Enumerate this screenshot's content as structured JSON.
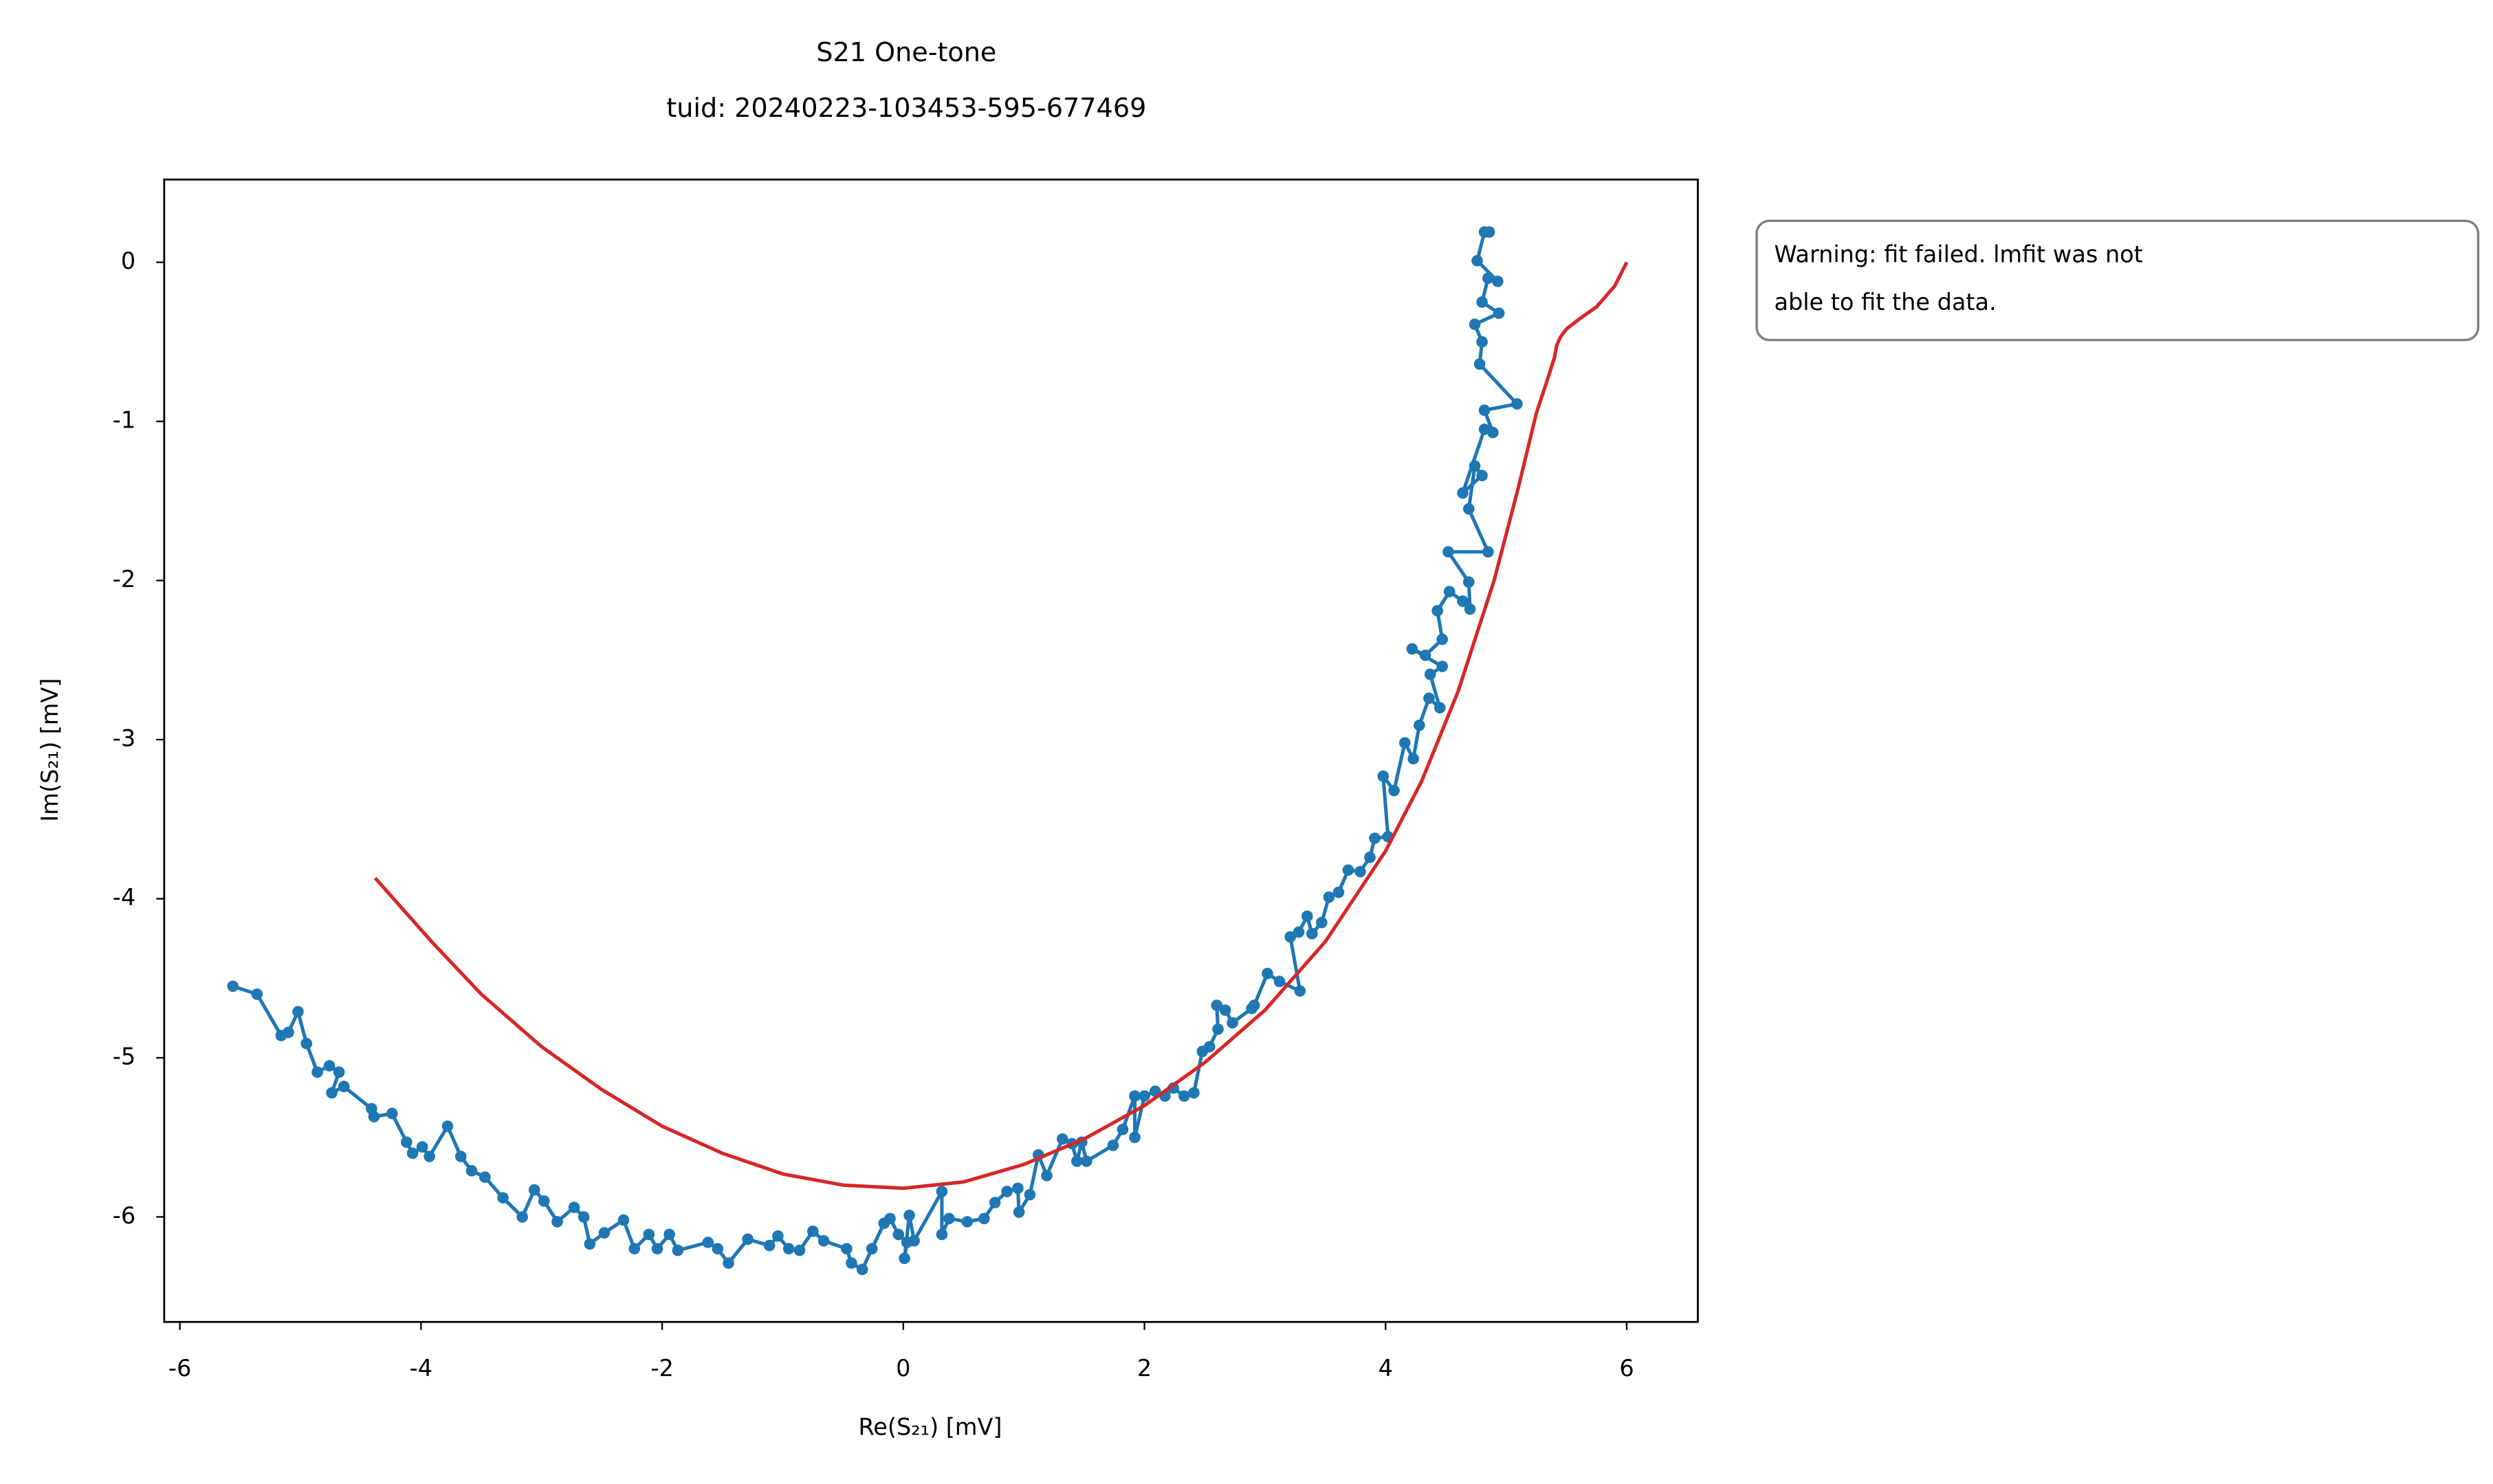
{
  "chart_data": {
    "type": "line",
    "title": [
      "S21 One-tone",
      "tuid: 20240223-103453-595-677469"
    ],
    "x_label": "Re(S₂₁) [mV]",
    "y_label": "Im(S₂₁) [mV]",
    "annotation": [
      "Warning: fit failed. lmfit was not",
      "able to fit the data."
    ],
    "xlim": [
      -6.13,
      6.59
    ],
    "ylim": [
      -6.66,
      0.52
    ],
    "xticks": [
      -6,
      -4,
      -2,
      0,
      2,
      4,
      6
    ],
    "yticks": [
      0,
      -1,
      -2,
      -3,
      -4,
      -5,
      -6
    ],
    "grid": false,
    "series": [
      {
        "color": "#1f77b4",
        "markers": true,
        "x": [
          -5.56,
          -5.36,
          -5.16,
          -5.1,
          -5.02,
          -4.95,
          -4.86,
          -4.76,
          -4.68,
          -4.74,
          -4.64,
          -4.41,
          -4.39,
          -4.24,
          -4.12,
          -4.07,
          -3.99,
          -3.93,
          -3.78,
          -3.67,
          -3.58,
          -3.47,
          -3.32,
          -3.16,
          -3.06,
          -2.98,
          -2.87,
          -2.73,
          -2.65,
          -2.6,
          -2.48,
          -2.32,
          -2.23,
          -2.11,
          -2.04,
          -1.94,
          -1.87,
          -1.62,
          -1.54,
          -1.45,
          -1.29,
          -1.11,
          -1.04,
          -0.95,
          -0.86,
          -0.75,
          -0.66,
          -0.47,
          -0.43,
          -0.34,
          -0.26,
          -0.16,
          -0.11,
          -0.04,
          0.03,
          0.01,
          0.05,
          0.09,
          0.32,
          0.32,
          0.38,
          0.53,
          0.67,
          0.76,
          0.86,
          0.95,
          0.96,
          1.05,
          1.12,
          1.19,
          1.32,
          1.4,
          1.44,
          1.48,
          1.52,
          1.74,
          1.82,
          1.92,
          1.92,
          2.0,
          2.09,
          2.17,
          2.24,
          2.33,
          2.41,
          2.48,
          2.54,
          2.61,
          2.6,
          2.67,
          2.73,
          2.89,
          2.91,
          3.02,
          3.12,
          3.29,
          3.21,
          3.28,
          3.35,
          3.39,
          3.47,
          3.53,
          3.61,
          3.69,
          3.79,
          3.87,
          3.91,
          4.02,
          3.98,
          4.07,
          4.16,
          4.23,
          4.28,
          4.36,
          4.45,
          4.37,
          4.47,
          4.22,
          4.33,
          4.47,
          4.43,
          4.53,
          4.64,
          4.7,
          4.69,
          4.52,
          4.85,
          4.69,
          4.74,
          4.8,
          4.64,
          4.82,
          4.89,
          4.82,
          5.09,
          4.78,
          4.8,
          4.74,
          4.94,
          4.8,
          4.85,
          4.93,
          4.76,
          4.82,
          4.86
        ],
        "values": [
          -4.55,
          -4.6,
          -4.86,
          -4.84,
          -4.71,
          -4.91,
          -5.09,
          -5.05,
          -5.09,
          -5.22,
          -5.18,
          -5.32,
          -5.37,
          -5.35,
          -5.53,
          -5.6,
          -5.56,
          -5.62,
          -5.43,
          -5.62,
          -5.71,
          -5.75,
          -5.88,
          -6.0,
          -5.83,
          -5.9,
          -6.03,
          -5.94,
          -6.0,
          -6.17,
          -6.1,
          -6.02,
          -6.2,
          -6.11,
          -6.2,
          -6.11,
          -6.21,
          -6.16,
          -6.2,
          -6.29,
          -6.14,
          -6.18,
          -6.12,
          -6.2,
          -6.21,
          -6.09,
          -6.15,
          -6.2,
          -6.29,
          -6.33,
          -6.2,
          -6.04,
          -6.01,
          -6.11,
          -6.16,
          -6.26,
          -5.99,
          -6.15,
          -5.84,
          -6.11,
          -6.01,
          -6.03,
          -6.01,
          -5.91,
          -5.84,
          -5.82,
          -5.97,
          -5.86,
          -5.61,
          -5.74,
          -5.51,
          -5.54,
          -5.65,
          -5.53,
          -5.65,
          -5.55,
          -5.45,
          -5.24,
          -5.5,
          -5.24,
          -5.21,
          -5.24,
          -5.19,
          -5.24,
          -5.22,
          -4.96,
          -4.93,
          -4.82,
          -4.67,
          -4.7,
          -4.78,
          -4.69,
          -4.67,
          -4.47,
          -4.52,
          -4.58,
          -4.24,
          -4.21,
          -4.11,
          -4.22,
          -4.15,
          -3.99,
          -3.96,
          -3.82,
          -3.83,
          -3.74,
          -3.62,
          -3.61,
          -3.23,
          -3.32,
          -3.02,
          -3.12,
          -2.91,
          -2.74,
          -2.8,
          -2.59,
          -2.54,
          -2.43,
          -2.47,
          -2.37,
          -2.19,
          -2.07,
          -2.13,
          -2.18,
          -2.01,
          -1.82,
          -1.82,
          -1.55,
          -1.28,
          -1.34,
          -1.45,
          -1.05,
          -1.07,
          -0.93,
          -0.89,
          -0.64,
          -0.5,
          -0.39,
          -0.32,
          -0.25,
          -0.1,
          -0.12,
          0.01,
          0.19,
          0.19
        ]
      },
      {
        "color": "#d62728",
        "markers": false,
        "x": [
          -4.38,
          -3.9,
          -3.5,
          -3.0,
          -2.5,
          -2.0,
          -1.5,
          -1.0,
          -0.5,
          0,
          0.5,
          1.0,
          1.5,
          2.0,
          2.5,
          3.0,
          3.5,
          4.0,
          4.3,
          4.6,
          4.9,
          5.1,
          5.25,
          5.35,
          5.4,
          5.42,
          5.45,
          5.5,
          5.6,
          5.75,
          5.9,
          6.0
        ],
        "values": [
          -3.87,
          -4.28,
          -4.6,
          -4.93,
          -5.2,
          -5.43,
          -5.6,
          -5.73,
          -5.8,
          -5.82,
          -5.78,
          -5.67,
          -5.51,
          -5.3,
          -5.03,
          -4.7,
          -4.27,
          -3.7,
          -3.26,
          -2.7,
          -2.0,
          -1.42,
          -0.95,
          -0.72,
          -0.6,
          -0.52,
          -0.47,
          -0.42,
          -0.36,
          -0.28,
          -0.15,
          0.0
        ]
      }
    ]
  }
}
